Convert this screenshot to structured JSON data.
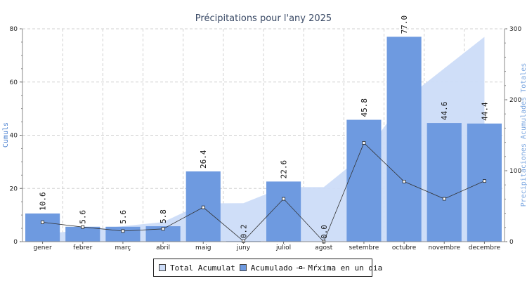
{
  "chart_data": {
    "type": "bar",
    "title": "Précipitations pour l'any 2025",
    "ylabel_left": "Cumuls",
    "ylabel_right": "Precipitaciones Acumulades Totales",
    "ylim_left": [
      0,
      80
    ],
    "ylim_right": [
      0,
      300
    ],
    "yticks_left": [
      "0",
      "20",
      "40",
      "60",
      "80"
    ],
    "yticks_right": [
      "0",
      "100",
      "200",
      "300"
    ],
    "grid": true,
    "legend_position": "bottom",
    "categories": [
      "gener",
      "febrer",
      "març",
      "abril",
      "maig",
      "juny",
      "juliol",
      "agost",
      "setembre",
      "octubre",
      "novembre",
      "decembre"
    ],
    "series": [
      {
        "name": "Total Acumulat",
        "kind": "area",
        "axis": "right",
        "color": "#ccdcf8",
        "values": [
          10.6,
          16.2,
          21.8,
          27.6,
          54.0,
          54.2,
          76.8,
          76.8,
          122.6,
          199.6,
          244.2,
          288.6
        ]
      },
      {
        "name": "Acumulado",
        "kind": "bar",
        "axis": "left",
        "color": "#6e9ae0",
        "values": [
          10.6,
          5.6,
          5.6,
          5.8,
          26.4,
          0.2,
          22.6,
          0.0,
          45.8,
          77.0,
          44.6,
          44.4
        ],
        "labels": [
          "10.6",
          "5.6",
          "5.6",
          "5.8",
          "26.4",
          "0.2",
          "22.6",
          "0.0",
          "45.8",
          "77.0",
          "44.6",
          "44.4"
        ]
      },
      {
        "name": "Mŕxima en un dia",
        "kind": "line",
        "axis": "left",
        "color": "#333333",
        "values": [
          7.3,
          5.5,
          4.0,
          4.8,
          12.9,
          0.2,
          16.1,
          0.0,
          37.1,
          22.6,
          16.1,
          22.8
        ]
      }
    ]
  }
}
